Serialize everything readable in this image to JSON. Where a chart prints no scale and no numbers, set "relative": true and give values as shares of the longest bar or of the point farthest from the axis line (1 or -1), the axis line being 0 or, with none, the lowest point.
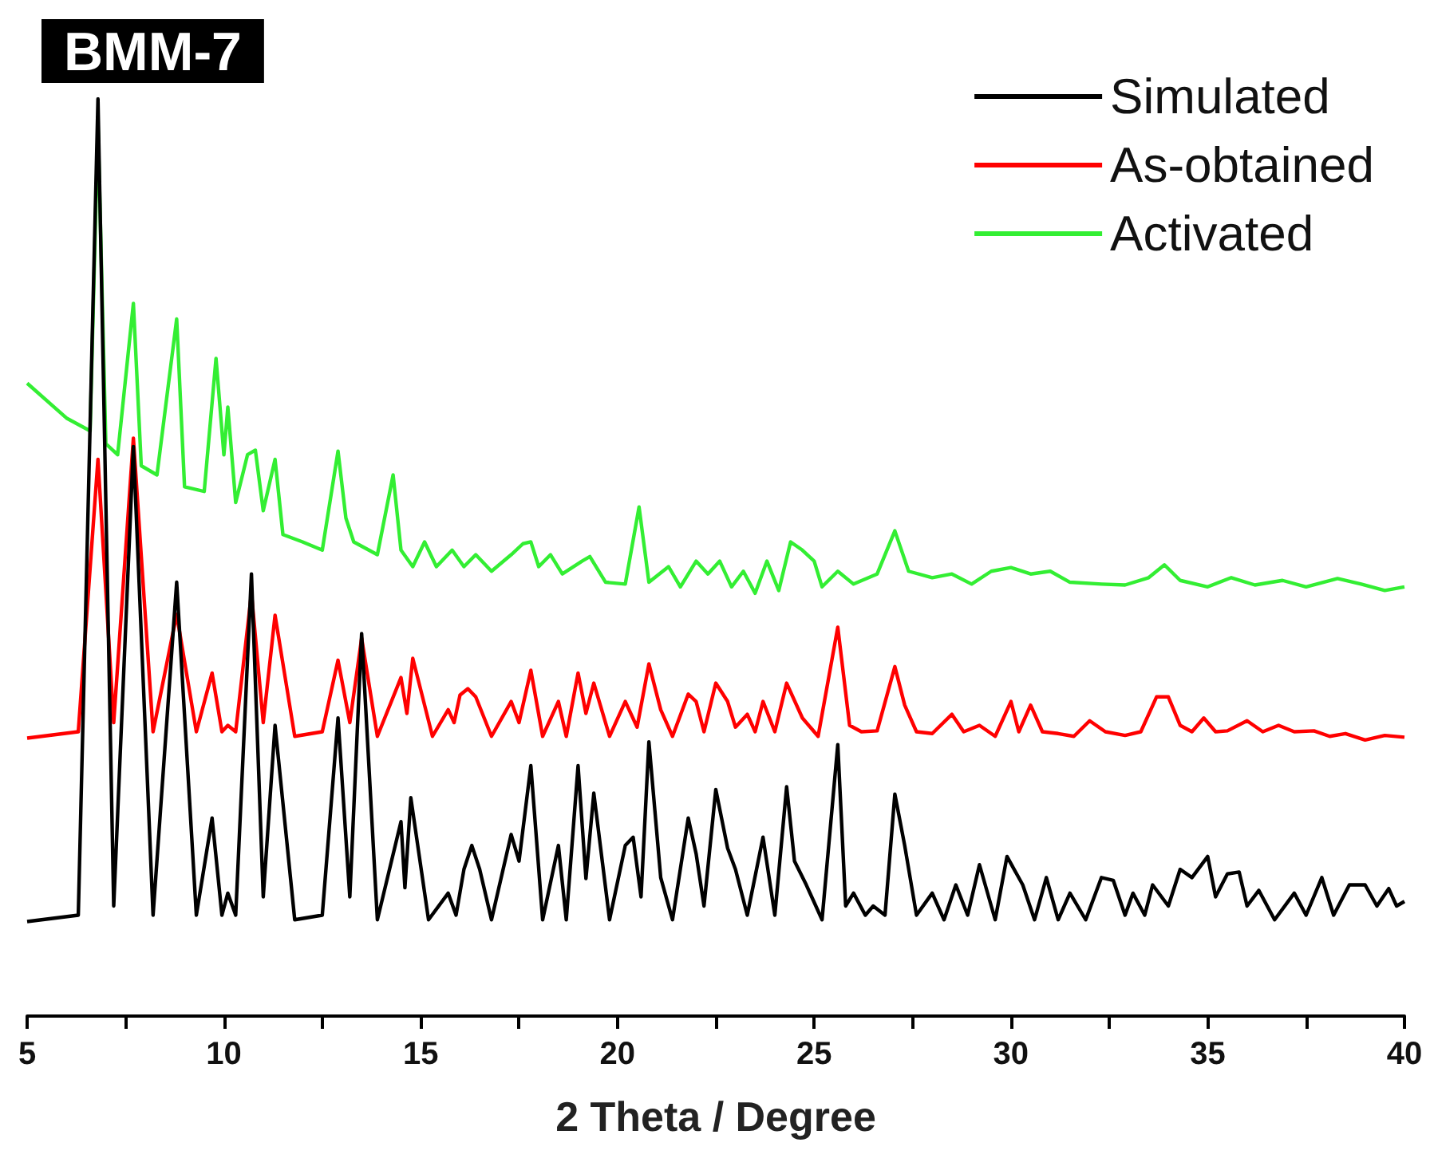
{
  "chart_data": {
    "type": "line",
    "title": "BMM-7",
    "xlabel": "2 Theta / Degree",
    "relative": true,
    "legend": "top right",
    "grid": false,
    "xlim": [
      5,
      40
    ],
    "xticks": [
      5,
      {
        "value": 7.5,
        "label": null
      },
      10,
      {
        "value": 12.5,
        "label": null
      },
      15,
      {
        "value": 17.5,
        "label": null
      },
      20,
      {
        "value": 22.5,
        "label": null
      },
      25,
      {
        "value": 27.5,
        "label": null
      },
      30,
      {
        "value": 32.5,
        "label": null
      },
      35,
      {
        "value": 37.5,
        "label": null
      },
      40
    ],
    "series": [
      {
        "name": "Simulated",
        "color": "#000000",
        "x": [
          5,
          6.3,
          6.8,
          7.2,
          7.7,
          8.2,
          8.8,
          9.3,
          9.7,
          9.95,
          10.1,
          10.3,
          10.7,
          11.0,
          11.3,
          11.8,
          12.5,
          12.9,
          13.2,
          13.5,
          13.9,
          14.5,
          14.6,
          14.75,
          15.2,
          15.7,
          15.9,
          16.1,
          16.3,
          16.5,
          16.8,
          17.3,
          17.5,
          17.8,
          18.1,
          18.5,
          18.7,
          19.0,
          19.2,
          19.4,
          19.8,
          20.2,
          20.4,
          20.6,
          20.8,
          21.1,
          21.4,
          21.8,
          22.0,
          22.2,
          22.5,
          22.8,
          23.0,
          23.3,
          23.7,
          24.0,
          24.3,
          24.5,
          24.8,
          25.2,
          25.6,
          25.8,
          26.0,
          26.3,
          26.5,
          26.8,
          27.05,
          27.3,
          27.6,
          28.0,
          28.3,
          28.6,
          28.9,
          29.2,
          29.6,
          29.9,
          30.3,
          30.6,
          30.9,
          31.2,
          31.5,
          31.9,
          32.3,
          32.6,
          32.9,
          33.1,
          33.4,
          33.6,
          34.0,
          34.3,
          34.6,
          35.0,
          35.2,
          35.5,
          35.8,
          36.0,
          36.3,
          36.7,
          37.2,
          37.5,
          37.9,
          38.2,
          38.6,
          39.0,
          39.3,
          39.6,
          39.8,
          40
        ],
        "values": [
          0.103,
          0.11,
          1.0,
          0.12,
          0.621,
          0.11,
          0.473,
          0.11,
          0.216,
          0.11,
          0.134,
          0.11,
          0.482,
          0.13,
          0.317,
          0.105,
          0.11,
          0.325,
          0.13,
          0.417,
          0.105,
          0.212,
          0.14,
          0.238,
          0.105,
          0.134,
          0.11,
          0.16,
          0.186,
          0.16,
          0.105,
          0.198,
          0.169,
          0.273,
          0.105,
          0.186,
          0.105,
          0.273,
          0.15,
          0.243,
          0.105,
          0.186,
          0.195,
          0.13,
          0.299,
          0.151,
          0.105,
          0.216,
          0.177,
          0.12,
          0.247,
          0.183,
          0.16,
          0.11,
          0.195,
          0.11,
          0.25,
          0.169,
          0.143,
          0.105,
          0.296,
          0.12,
          0.134,
          0.11,
          0.12,
          0.11,
          0.242,
          0.186,
          0.11,
          0.134,
          0.105,
          0.143,
          0.11,
          0.165,
          0.105,
          0.174,
          0.143,
          0.105,
          0.151,
          0.105,
          0.134,
          0.105,
          0.151,
          0.148,
          0.11,
          0.134,
          0.11,
          0.143,
          0.12,
          0.16,
          0.151,
          0.174,
          0.13,
          0.155,
          0.157,
          0.12,
          0.137,
          0.105,
          0.134,
          0.11,
          0.151,
          0.11,
          0.143,
          0.143,
          0.12,
          0.139,
          0.12,
          0.125
        ]
      },
      {
        "name": "As-obtained",
        "color": "#ff0000",
        "x": [
          5,
          6.3,
          6.8,
          7.2,
          7.7,
          8.2,
          8.8,
          9.3,
          9.7,
          9.95,
          10.1,
          10.3,
          10.7,
          11.0,
          11.3,
          11.8,
          12.5,
          12.9,
          13.2,
          13.5,
          13.9,
          14.5,
          14.65,
          14.8,
          15.3,
          15.7,
          15.85,
          16.0,
          16.2,
          16.4,
          16.8,
          17.3,
          17.5,
          17.8,
          18.1,
          18.5,
          18.7,
          19.0,
          19.2,
          19.4,
          19.8,
          20.2,
          20.5,
          20.8,
          21.1,
          21.4,
          21.8,
          22.0,
          22.2,
          22.5,
          22.8,
          23.0,
          23.3,
          23.5,
          23.7,
          24.0,
          24.3,
          24.7,
          25.1,
          25.6,
          25.9,
          26.2,
          26.6,
          27.05,
          27.3,
          27.6,
          28.0,
          28.5,
          28.8,
          29.2,
          29.6,
          30.0,
          30.2,
          30.5,
          30.8,
          31.2,
          31.6,
          32.0,
          32.4,
          32.9,
          33.3,
          33.7,
          34.0,
          34.3,
          34.6,
          34.9,
          35.2,
          35.5,
          36.0,
          36.4,
          36.8,
          37.2,
          37.7,
          38.1,
          38.5,
          39.0,
          39.5,
          40
        ],
        "values": [
          0.303,
          0.31,
          0.607,
          0.32,
          0.63,
          0.31,
          0.438,
          0.31,
          0.374,
          0.31,
          0.317,
          0.31,
          0.461,
          0.32,
          0.437,
          0.305,
          0.31,
          0.388,
          0.32,
          0.412,
          0.305,
          0.369,
          0.33,
          0.39,
          0.305,
          0.334,
          0.32,
          0.35,
          0.357,
          0.348,
          0.305,
          0.343,
          0.32,
          0.377,
          0.305,
          0.343,
          0.305,
          0.374,
          0.33,
          0.363,
          0.305,
          0.343,
          0.315,
          0.384,
          0.334,
          0.305,
          0.351,
          0.343,
          0.31,
          0.363,
          0.343,
          0.315,
          0.329,
          0.31,
          0.343,
          0.31,
          0.363,
          0.325,
          0.305,
          0.424,
          0.317,
          0.31,
          0.311,
          0.381,
          0.339,
          0.31,
          0.308,
          0.329,
          0.31,
          0.317,
          0.305,
          0.343,
          0.31,
          0.339,
          0.31,
          0.308,
          0.305,
          0.322,
          0.31,
          0.306,
          0.31,
          0.348,
          0.348,
          0.317,
          0.31,
          0.325,
          0.31,
          0.311,
          0.322,
          0.31,
          0.317,
          0.31,
          0.311,
          0.305,
          0.308,
          0.301,
          0.306,
          0.304
        ]
      },
      {
        "name": "Activated",
        "color": "#33ee33",
        "x": [
          5,
          6.0,
          6.6,
          6.8,
          7.0,
          7.3,
          7.7,
          7.9,
          8.3,
          8.8,
          9.0,
          9.5,
          9.8,
          10.0,
          10.1,
          10.3,
          10.6,
          10.8,
          11.0,
          11.3,
          11.5,
          12.0,
          12.5,
          12.9,
          13.1,
          13.3,
          13.9,
          14.3,
          14.5,
          14.8,
          15.1,
          15.4,
          15.8,
          16.1,
          16.4,
          16.8,
          17.3,
          17.6,
          17.8,
          18.0,
          18.3,
          18.6,
          19.1,
          19.3,
          19.7,
          20.2,
          20.55,
          20.8,
          21.3,
          21.6,
          22.0,
          22.3,
          22.6,
          22.9,
          23.2,
          23.5,
          23.8,
          24.1,
          24.4,
          24.7,
          25.0,
          25.2,
          25.6,
          26.0,
          26.6,
          27.05,
          27.4,
          28.0,
          28.5,
          29.0,
          29.5,
          30.0,
          30.5,
          31.0,
          31.5,
          32.3,
          32.9,
          33.5,
          33.9,
          34.3,
          35.0,
          35.6,
          36.2,
          36.9,
          37.5,
          38.3,
          38.9,
          39.5,
          40
        ],
        "values": [
          0.69,
          0.652,
          0.638,
          0.972,
          0.624,
          0.612,
          0.777,
          0.6,
          0.59,
          0.76,
          0.577,
          0.572,
          0.717,
          0.612,
          0.664,
          0.56,
          0.612,
          0.617,
          0.551,
          0.607,
          0.525,
          0.517,
          0.508,
          0.616,
          0.543,
          0.517,
          0.503,
          0.59,
          0.508,
          0.49,
          0.517,
          0.49,
          0.508,
          0.49,
          0.503,
          0.485,
          0.503,
          0.515,
          0.517,
          0.49,
          0.503,
          0.482,
          0.496,
          0.501,
          0.473,
          0.471,
          0.555,
          0.473,
          0.49,
          0.468,
          0.496,
          0.482,
          0.496,
          0.468,
          0.485,
          0.461,
          0.496,
          0.464,
          0.517,
          0.508,
          0.496,
          0.468,
          0.485,
          0.471,
          0.482,
          0.529,
          0.485,
          0.478,
          0.482,
          0.471,
          0.485,
          0.489,
          0.482,
          0.485,
          0.473,
          0.471,
          0.47,
          0.478,
          0.492,
          0.475,
          0.468,
          0.478,
          0.47,
          0.475,
          0.468,
          0.477,
          0.471,
          0.464,
          0.468
        ]
      }
    ]
  }
}
